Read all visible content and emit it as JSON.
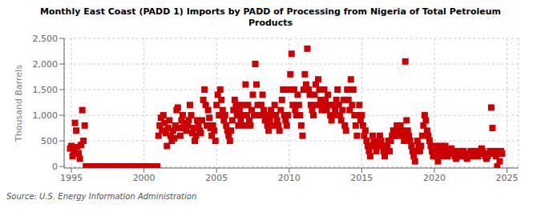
{
  "chart_data": {
    "type": "scatter",
    "title": "Monthly East Coast (PADD 1) Imports by PADD of Processing from Nigeria of Total Petroleum\nProducts",
    "ylabel": "Thousand Barrels",
    "annotations": [
      "Source: U.S. Energy Information Administration"
    ],
    "color": "#cc0000",
    "marker": "square",
    "grid": true,
    "xlim": [
      1994.5,
      2025.8
    ],
    "ylim": [
      -30,
      2500
    ],
    "xticks": [
      1995,
      2000,
      2005,
      2010,
      2015,
      2020,
      2025
    ],
    "yticks": [
      0,
      500,
      {
        "value": 1000,
        "label": "1,000"
      },
      {
        "value": 1500,
        "label": "1,500"
      },
      {
        "value": 2000,
        "label": "2,000"
      },
      {
        "value": 2500,
        "label": "2,500"
      }
    ],
    "x": [
      1994.917,
      1995.0,
      1995.083,
      1995.167,
      1995.25,
      1995.333,
      1995.417,
      1995.5,
      1995.583,
      1995.667,
      1995.75,
      1995.833,
      1995.917,
      1996.0,
      1996.083,
      1996.167,
      1996.25,
      1996.333,
      1996.417,
      1996.5,
      1996.583,
      1996.667,
      1996.75,
      1996.833,
      1996.917,
      1997.0,
      1997.083,
      1997.167,
      1997.25,
      1997.333,
      1997.417,
      1997.5,
      1997.583,
      1997.667,
      1997.75,
      1997.833,
      1997.917,
      1998.0,
      1998.083,
      1998.167,
      1998.25,
      1998.333,
      1998.417,
      1998.5,
      1998.583,
      1998.667,
      1998.75,
      1998.833,
      1998.917,
      1999.0,
      1999.083,
      1999.167,
      1999.25,
      1999.333,
      1999.417,
      1999.5,
      1999.583,
      1999.667,
      1999.75,
      1999.833,
      1999.917,
      2000.0,
      2000.083,
      2000.167,
      2000.25,
      2000.333,
      2000.417,
      2000.5,
      2000.583,
      2000.667,
      2000.75,
      2000.833,
      2000.917,
      2001.0,
      2001.083,
      2001.167,
      2001.25,
      2001.333,
      2001.417,
      2001.5,
      2001.583,
      2001.667,
      2001.75,
      2001.833,
      2001.917,
      2002.0,
      2002.083,
      2002.167,
      2002.25,
      2002.333,
      2002.417,
      2002.5,
      2002.583,
      2002.667,
      2002.75,
      2002.833,
      2002.917,
      2003.0,
      2003.083,
      2003.167,
      2003.25,
      2003.333,
      2003.417,
      2003.5,
      2003.583,
      2003.667,
      2003.75,
      2003.833,
      2003.917,
      2004.0,
      2004.083,
      2004.167,
      2004.25,
      2004.333,
      2004.417,
      2004.5,
      2004.583,
      2004.667,
      2004.75,
      2004.833,
      2004.917,
      2005.0,
      2005.083,
      2005.167,
      2005.25,
      2005.333,
      2005.417,
      2005.5,
      2005.583,
      2005.667,
      2005.75,
      2005.833,
      2005.917,
      2006.0,
      2006.083,
      2006.167,
      2006.25,
      2006.333,
      2006.417,
      2006.5,
      2006.583,
      2006.667,
      2006.75,
      2006.833,
      2006.917,
      2007.0,
      2007.083,
      2007.167,
      2007.25,
      2007.333,
      2007.417,
      2007.5,
      2007.583,
      2007.667,
      2007.75,
      2007.833,
      2007.917,
      2008.0,
      2008.083,
      2008.167,
      2008.25,
      2008.333,
      2008.417,
      2008.5,
      2008.583,
      2008.667,
      2008.75,
      2008.833,
      2008.917,
      2009.0,
      2009.083,
      2009.167,
      2009.25,
      2009.333,
      2009.417,
      2009.5,
      2009.583,
      2009.667,
      2009.75,
      2009.833,
      2009.917,
      2010.0,
      2010.083,
      2010.167,
      2010.25,
      2010.333,
      2010.417,
      2010.5,
      2010.583,
      2010.667,
      2010.75,
      2010.833,
      2010.917,
      2011.0,
      2011.083,
      2011.167,
      2011.25,
      2011.333,
      2011.417,
      2011.5,
      2011.583,
      2011.667,
      2011.75,
      2011.833,
      2011.917,
      2012.0,
      2012.083,
      2012.167,
      2012.25,
      2012.333,
      2012.417,
      2012.5,
      2012.583,
      2012.667,
      2012.75,
      2012.833,
      2012.917,
      2013.0,
      2013.083,
      2013.167,
      2013.25,
      2013.333,
      2013.417,
      2013.5,
      2013.583,
      2013.667,
      2013.75,
      2013.833,
      2013.917,
      2014.0,
      2014.083,
      2014.167,
      2014.25,
      2014.333,
      2014.417,
      2014.5,
      2014.583,
      2014.667,
      2014.75,
      2014.833,
      2014.917,
      2015.0,
      2015.083,
      2015.167,
      2015.25,
      2015.333,
      2015.417,
      2015.5,
      2015.583,
      2015.667,
      2015.75,
      2015.833,
      2015.917,
      2016.0,
      2016.083,
      2016.167,
      2016.25,
      2016.333,
      2016.417,
      2016.5,
      2016.583,
      2016.667,
      2016.75,
      2016.833,
      2016.917,
      2017.0,
      2017.083,
      2017.167,
      2017.25,
      2017.333,
      2017.417,
      2017.5,
      2017.583,
      2017.667,
      2017.75,
      2017.833,
      2017.917,
      2018.0,
      2018.083,
      2018.167,
      2018.25,
      2018.333,
      2018.417,
      2018.5,
      2018.583,
      2018.667,
      2018.75,
      2018.833,
      2018.917,
      2019.0,
      2019.083,
      2019.167,
      2019.25,
      2019.333,
      2019.417,
      2019.5,
      2019.583,
      2019.667,
      2019.75,
      2019.833,
      2019.917,
      2020.0,
      2020.083,
      2020.167,
      2020.25,
      2020.333,
      2020.417,
      2020.5,
      2020.583,
      2020.667,
      2020.75,
      2020.833,
      2020.917,
      2021.0,
      2021.083,
      2021.167,
      2021.25,
      2021.333,
      2021.417,
      2021.5,
      2021.583,
      2021.667,
      2021.75,
      2021.833,
      2021.917,
      2022.0,
      2022.083,
      2022.167,
      2022.25,
      2022.333,
      2022.417,
      2022.5,
      2022.583,
      2022.667,
      2022.75,
      2022.833,
      2022.917,
      2023.0,
      2023.083,
      2023.167,
      2023.25,
      2023.333,
      2023.417,
      2023.5,
      2023.583,
      2023.667,
      2023.75,
      2023.833,
      2023.917,
      2024.0,
      2024.083,
      2024.167,
      2024.25,
      2024.333,
      2024.417,
      2024.5,
      2024.583,
      2024.667
    ],
    "values": [
      350,
      400,
      200,
      300,
      850,
      700,
      380,
      250,
      150,
      420,
      1100,
      500,
      800,
      0,
      0,
      0,
      0,
      0,
      0,
      0,
      0,
      0,
      0,
      0,
      0,
      0,
      0,
      0,
      0,
      0,
      0,
      0,
      0,
      0,
      0,
      0,
      0,
      0,
      0,
      0,
      0,
      0,
      0,
      0,
      0,
      0,
      0,
      0,
      0,
      0,
      0,
      0,
      0,
      0,
      0,
      0,
      0,
      0,
      0,
      0,
      0,
      0,
      0,
      0,
      0,
      0,
      0,
      0,
      0,
      0,
      0,
      0,
      0,
      600,
      800,
      950,
      700,
      1000,
      850,
      650,
      400,
      750,
      900,
      600,
      500,
      700,
      550,
      800,
      1100,
      1150,
      750,
      600,
      900,
      1000,
      850,
      750,
      700,
      800,
      900,
      1200,
      1000,
      650,
      750,
      500,
      600,
      900,
      800,
      700,
      650,
      900,
      1300,
      1500,
      1200,
      800,
      1100,
      950,
      750,
      600,
      800,
      700,
      500,
      1200,
      1400,
      1000,
      1500,
      1300,
      1100,
      900,
      1000,
      800,
      700,
      600,
      500,
      700,
      900,
      1100,
      1300,
      1200,
      1000,
      800,
      1100,
      900,
      1200,
      1000,
      800,
      1600,
      1000,
      1200,
      900,
      800,
      1100,
      1400,
      1000,
      2000,
      1600,
      1200,
      1000,
      1000,
      1200,
      1400,
      1100,
      900,
      1000,
      800,
      700,
      900,
      1100,
      1000,
      800,
      1200,
      1000,
      900,
      800,
      700,
      1100,
      1300,
      1500,
      1000,
      900,
      800,
      1000,
      1500,
      1800,
      2200,
      1200,
      1500,
      1100,
      1000,
      1400,
      1200,
      1000,
      800,
      600,
      1500,
      1800,
      1600,
      2300,
      1500,
      1400,
      1200,
      1100,
      1000,
      1400,
      1600,
      1200,
      1700,
      1500,
      1300,
      1100,
      1200,
      1500,
      1300,
      1100,
      1400,
      1200,
      1000,
      900,
      1200,
      1000,
      1100,
      1300,
      1500,
      1200,
      1000,
      900,
      1100,
      1300,
      800,
      700,
      1500,
      1300,
      1100,
      1700,
      1200,
      1500,
      1000,
      800,
      600,
      1000,
      1200,
      900,
      1000,
      800,
      600,
      700,
      500,
      400,
      300,
      200,
      400,
      600,
      500,
      400,
      300,
      400,
      500,
      600,
      500,
      400,
      300,
      200,
      300,
      400,
      500,
      300,
      500,
      600,
      700,
      600,
      700,
      800,
      600,
      700,
      800,
      700,
      600,
      500,
      2050,
      900,
      700,
      600,
      500,
      400,
      300,
      200,
      100,
      300,
      500,
      400,
      300,
      400,
      600,
      800,
      1000,
      900,
      700,
      600,
      500,
      400,
      300,
      200,
      300,
      400,
      200,
      100,
      300,
      400,
      300,
      200,
      300,
      400,
      300,
      200,
      250,
      300,
      350,
      250,
      300,
      200,
      150,
      200,
      250,
      300,
      250,
      200,
      300,
      250,
      200,
      150,
      200,
      250,
      300,
      250,
      200,
      250,
      300,
      250,
      200,
      250,
      300,
      350,
      300,
      250,
      200,
      150,
      200,
      250,
      300,
      1150,
      750,
      250,
      300,
      200,
      0,
      250,
      100,
      300,
      250
    ]
  }
}
